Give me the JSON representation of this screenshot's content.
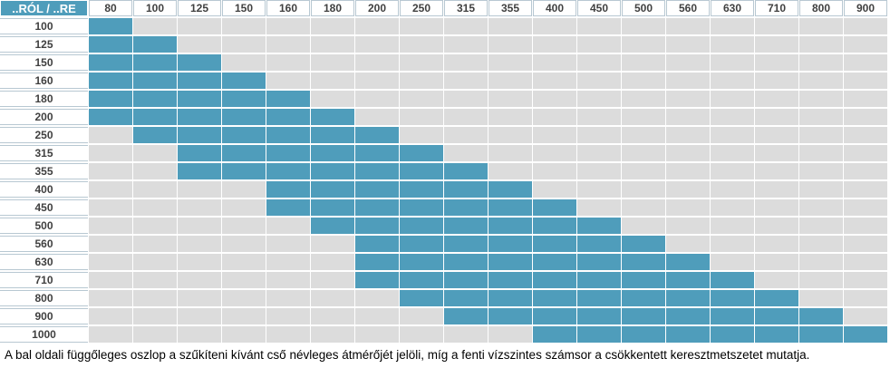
{
  "table": {
    "corner_label": "..RÓL / ..RE",
    "columns": [
      "80",
      "100",
      "125",
      "150",
      "160",
      "180",
      "200",
      "250",
      "315",
      "355",
      "400",
      "450",
      "500",
      "560",
      "630",
      "710",
      "800",
      "900"
    ],
    "rows": [
      {
        "label": "100",
        "from": 0,
        "to": 0
      },
      {
        "label": "125",
        "from": 0,
        "to": 1
      },
      {
        "label": "150",
        "from": 0,
        "to": 2
      },
      {
        "label": "160",
        "from": 0,
        "to": 3
      },
      {
        "label": "180",
        "from": 0,
        "to": 4
      },
      {
        "label": "200",
        "from": 0,
        "to": 5
      },
      {
        "label": "250",
        "from": 1,
        "to": 6
      },
      {
        "label": "315",
        "from": 2,
        "to": 7
      },
      {
        "label": "355",
        "from": 2,
        "to": 8
      },
      {
        "label": "400",
        "from": 4,
        "to": 9
      },
      {
        "label": "450",
        "from": 4,
        "to": 10
      },
      {
        "label": "500",
        "from": 5,
        "to": 11
      },
      {
        "label": "560",
        "from": 6,
        "to": 12
      },
      {
        "label": "630",
        "from": 6,
        "to": 13
      },
      {
        "label": "710",
        "from": 6,
        "to": 14
      },
      {
        "label": "800",
        "from": 7,
        "to": 15
      },
      {
        "label": "900",
        "from": 8,
        "to": 16
      },
      {
        "label": "1000",
        "from": 10,
        "to": 17
      }
    ]
  },
  "caption": "A bal oldali függőleges oszlop a szűkíteni kívánt cső névleges átmérőjét jelöli, míg a fenti vízszintes számsor a csökkentett keresztmetszetet mutatja.",
  "colors": {
    "filled": "#4f9dbb",
    "empty": "#dcdcdc"
  }
}
